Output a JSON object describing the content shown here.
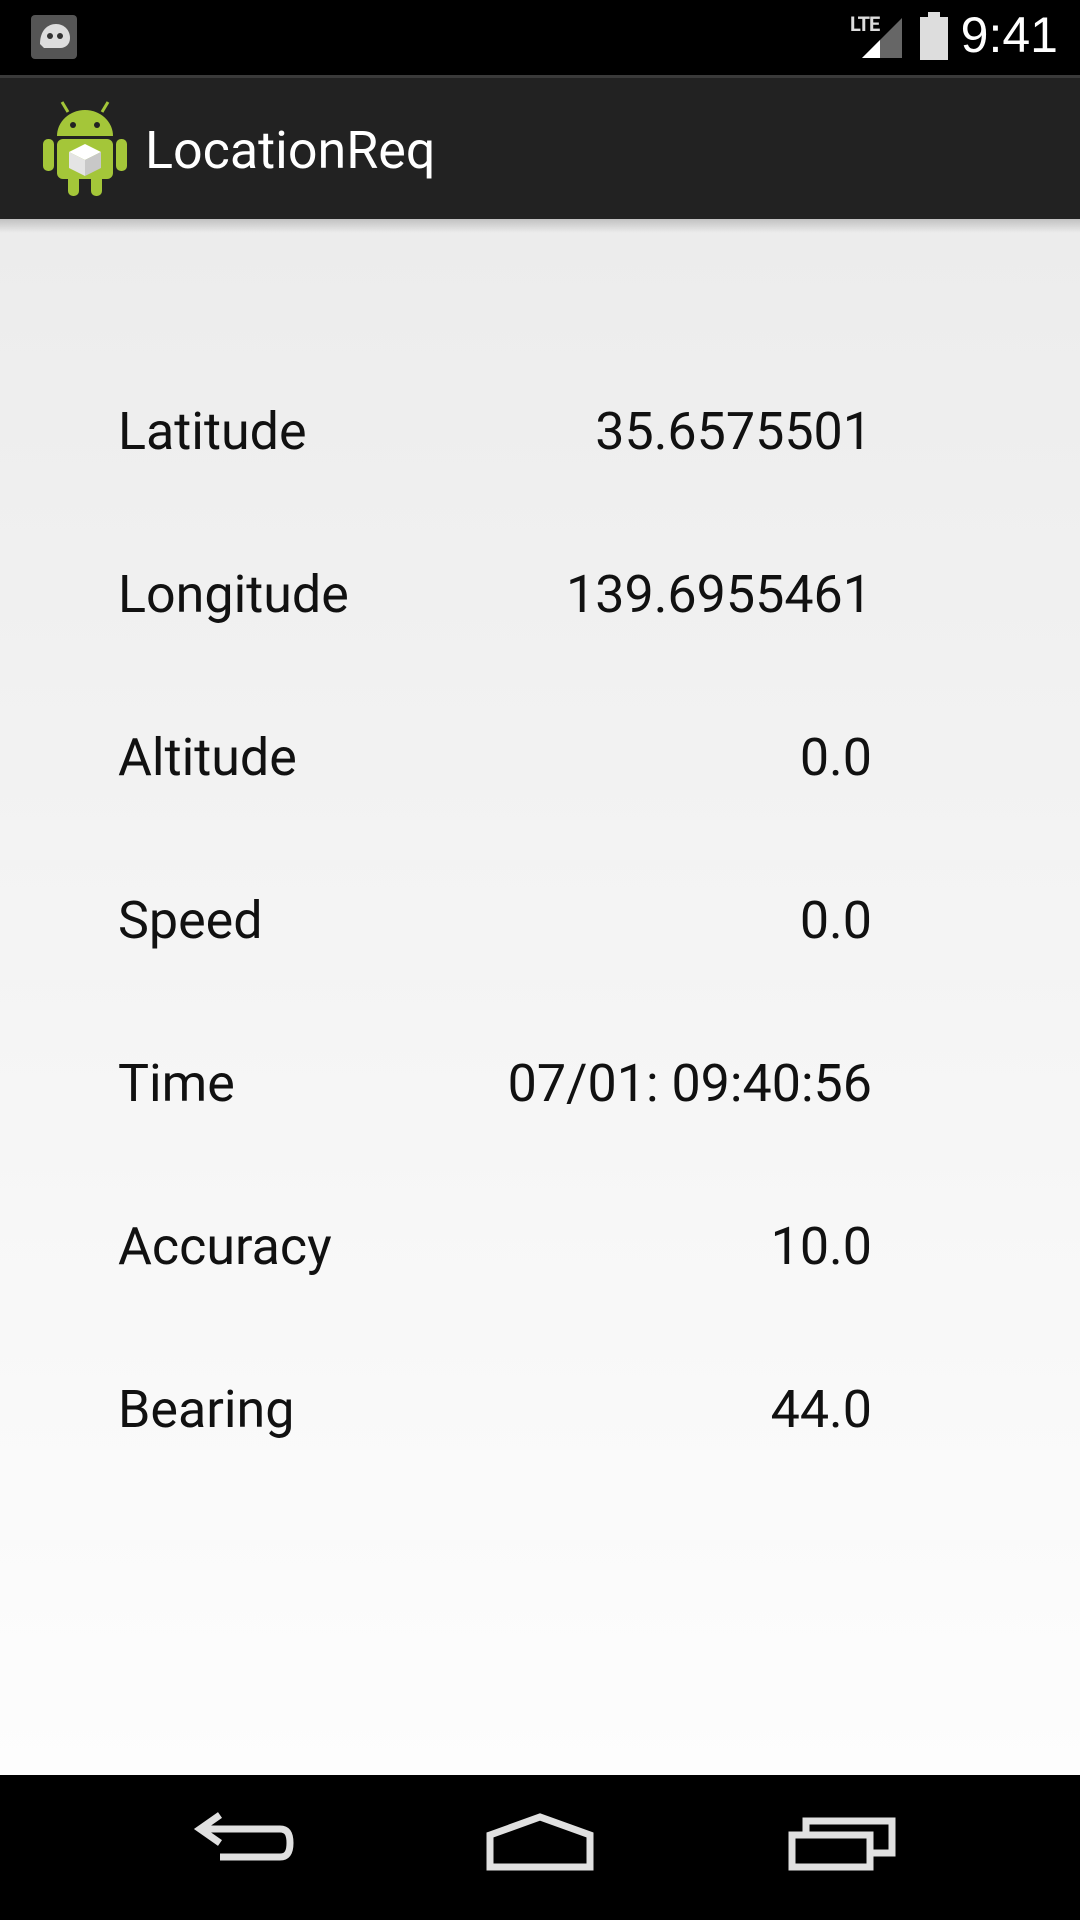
{
  "status_bar": {
    "time": "9:41",
    "network": "LTE",
    "icons": [
      "notification-app-icon",
      "signal-icon",
      "battery-icon"
    ]
  },
  "action_bar": {
    "title": "LocationReq",
    "icon": "android-app-icon"
  },
  "fields": [
    {
      "label": "Latitude",
      "value": "35.6575501"
    },
    {
      "label": "Longitude",
      "value": "139.6955461"
    },
    {
      "label": "Altitude",
      "value": "0.0"
    },
    {
      "label": "Speed",
      "value": "0.0"
    },
    {
      "label": "Time",
      "value": "07/01: 09:40:56"
    },
    {
      "label": "Accuracy",
      "value": "10.0"
    },
    {
      "label": "Bearing",
      "value": "44.0"
    }
  ],
  "nav_bar": {
    "buttons": [
      "back-icon",
      "home-icon",
      "recents-icon"
    ]
  },
  "colors": {
    "action_bar_bg": "#222222",
    "status_bar_bg": "#000000",
    "content_bg": "#f0f0f0",
    "android_green": "#a4c639"
  }
}
